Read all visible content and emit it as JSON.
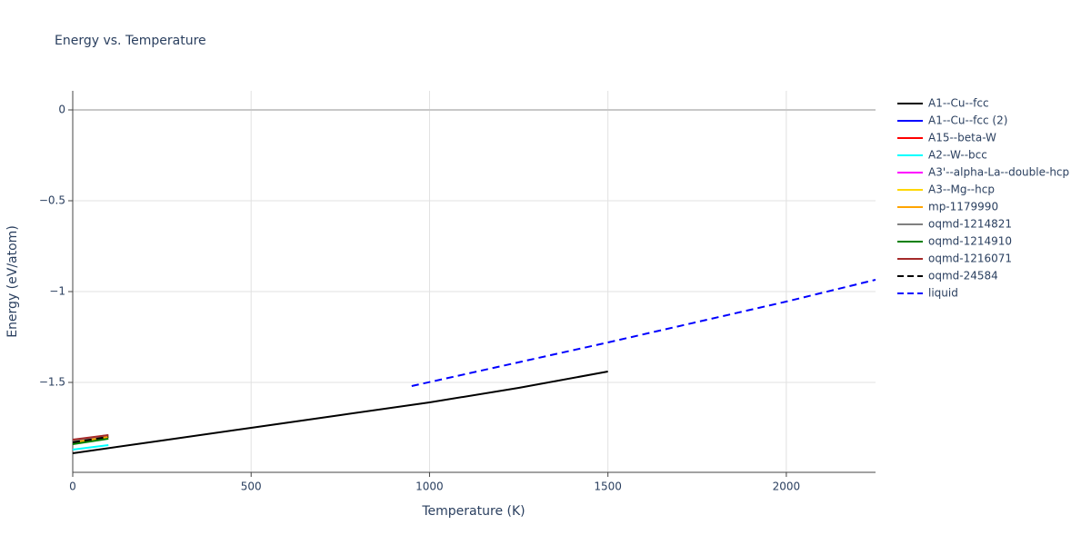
{
  "chart_data": {
    "type": "line",
    "title": "Energy vs. Temperature",
    "x_label": "Temperature (K)",
    "y_label": "Energy (eV/atom)",
    "xlim": [
      0,
      2250
    ],
    "ylim": [
      -1.995,
      0.105
    ],
    "xticks": [
      0,
      500,
      1000,
      1500,
      2000
    ],
    "yticks": [
      0,
      {
        "value": -0.5,
        "label": "−0.5"
      },
      {
        "value": -1,
        "label": "−1"
      },
      {
        "value": -1.5,
        "label": "−1.5"
      }
    ],
    "grid": true,
    "legend": "right",
    "series": [
      {
        "name": "A1--Cu--fcc",
        "color": "#000000",
        "dash": false,
        "x": [
          0,
          250,
          500,
          750,
          1000,
          1250,
          1500
        ],
        "values": [
          -1.89,
          -1.82,
          -1.75,
          -1.68,
          -1.61,
          -1.53,
          -1.44
        ]
      },
      {
        "name": "A1--Cu--fcc (2)",
        "color": "#0000ff",
        "dash": false,
        "x": [
          0,
          100
        ],
        "values": [
          -1.83,
          -1.8
        ]
      },
      {
        "name": "A15--beta-W",
        "color": "#ff0000",
        "dash": false,
        "x": [
          0,
          100
        ],
        "values": [
          -1.83,
          -1.8
        ]
      },
      {
        "name": "A2--W--bcc",
        "color": "#00ffff",
        "dash": false,
        "x": [
          0,
          100
        ],
        "values": [
          -1.87,
          -1.845
        ]
      },
      {
        "name": "A3'--alpha-La--double-hcp",
        "color": "#ff00ff",
        "dash": false,
        "x": [
          0,
          100
        ],
        "values": [
          -1.83,
          -1.8
        ]
      },
      {
        "name": "A3--Mg--hcp",
        "color": "#ffd700",
        "dash": false,
        "x": [
          0,
          100
        ],
        "values": [
          -1.83,
          -1.8
        ]
      },
      {
        "name": "mp-1179990",
        "color": "#ffa500",
        "dash": false,
        "x": [
          0,
          100
        ],
        "values": [
          -1.83,
          -1.8
        ]
      },
      {
        "name": "oqmd-1214821",
        "color": "#808080",
        "dash": false,
        "x": [
          0,
          100
        ],
        "values": [
          -1.82,
          -1.79
        ]
      },
      {
        "name": "oqmd-1214910",
        "color": "#008000",
        "dash": false,
        "x": [
          0,
          100
        ],
        "values": [
          -1.84,
          -1.81
        ]
      },
      {
        "name": "oqmd-1216071",
        "color": "#a52a2a",
        "dash": false,
        "x": [
          0,
          100
        ],
        "values": [
          -1.815,
          -1.79
        ]
      },
      {
        "name": "oqmd-24584",
        "color": "#000000",
        "dash": true,
        "x": [
          0,
          100
        ],
        "values": [
          -1.83,
          -1.8
        ]
      },
      {
        "name": "liquid",
        "color": "#0000ff",
        "dash": true,
        "x": [
          950,
          1500,
          2000,
          2250
        ],
        "values": [
          -1.52,
          -1.28,
          -1.055,
          -0.935
        ]
      }
    ]
  }
}
